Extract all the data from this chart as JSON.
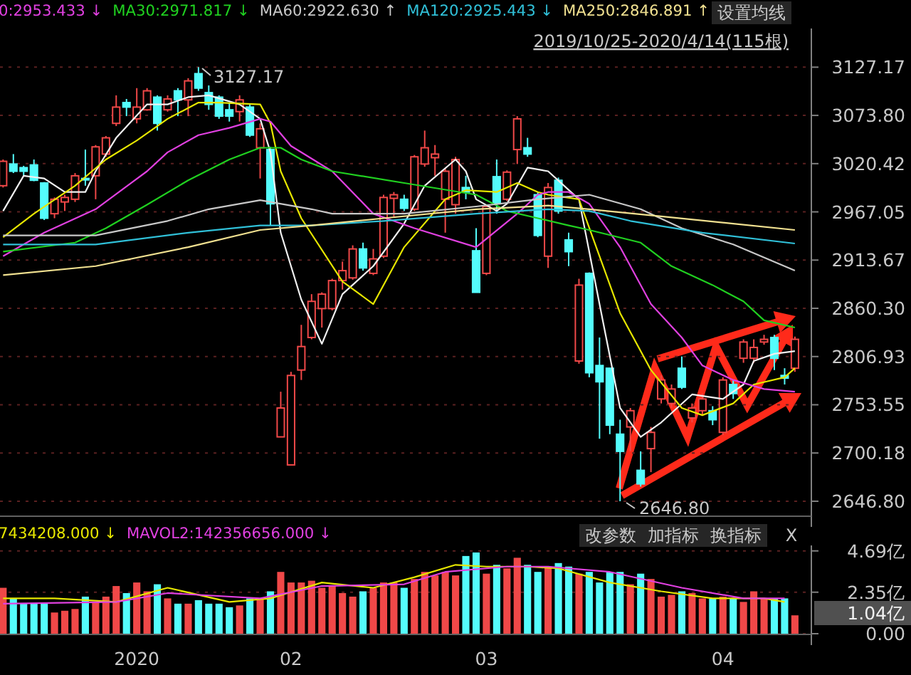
{
  "chart_data": [
    {
      "type": "candlestick",
      "legend": "top",
      "grid": "y",
      "tick_labels": "y",
      "ylim": [
        2631,
        3170
      ],
      "yticks": [
        3127.17,
        {
          "value": 3073.8,
          "label": "3073.80"
        },
        3020.42,
        2967.05,
        2913.67,
        {
          "value": 2860.3,
          "label": "2860.30"
        },
        2806.93,
        2753.55,
        2700.18,
        {
          "value": 2646.8,
          "label": "2646.80"
        }
      ],
      "categories": [
        null,
        null,
        null,
        null,
        null,
        null,
        null,
        null,
        null,
        null,
        null,
        null,
        null,
        "2020",
        null,
        null,
        null,
        null,
        null,
        null,
        null,
        null,
        null,
        null,
        null,
        null,
        null,
        null,
        "02",
        null,
        null,
        null,
        null,
        null,
        null,
        null,
        null,
        null,
        null,
        null,
        null,
        null,
        null,
        null,
        null,
        null,
        null,
        "03",
        null,
        null,
        null,
        null,
        null,
        null,
        null,
        null,
        null,
        null,
        null,
        null,
        null,
        null,
        null,
        null,
        null,
        null,
        null,
        null,
        null,
        null,
        "04",
        null,
        null,
        null,
        null,
        null,
        null,
        null
      ],
      "ohlc": [
        [
          2996,
          3025,
          2994,
          3023
        ],
        [
          3020,
          3031,
          3010,
          3012
        ],
        [
          3016,
          3018,
          3007,
          3012
        ],
        [
          3019,
          3025,
          3001,
          3002
        ],
        [
          2999,
          3000,
          2958,
          2960
        ],
        [
          2965,
          2983,
          2960,
          2981
        ],
        [
          2978,
          2986,
          2968,
          2983
        ],
        [
          2981,
          3010,
          2978,
          3007
        ],
        [
          3004,
          3036,
          2996,
          3003
        ],
        [
          3007,
          3041,
          2981,
          3039
        ],
        [
          3031,
          3051,
          3028,
          3049
        ],
        [
          3065,
          3096,
          3062,
          3083
        ],
        [
          3088,
          3092,
          3073,
          3083
        ],
        [
          3070,
          3104,
          3065,
          3083
        ],
        [
          3080,
          3104,
          3079,
          3101
        ],
        [
          3094,
          3096,
          3057,
          3065
        ],
        [
          3080,
          3096,
          3078,
          3092
        ],
        [
          3101,
          3104,
          3073,
          3091
        ],
        [
          3091,
          3115,
          3073,
          3112
        ],
        [
          3120,
          3127.17,
          3101,
          3104
        ],
        [
          3099,
          3107,
          3080,
          3086
        ],
        [
          3094,
          3096,
          3070,
          3073
        ],
        [
          3080,
          3088,
          3067,
          3073
        ],
        [
          3078,
          3096,
          3067,
          3091
        ],
        [
          3083,
          3086,
          3050,
          3052
        ],
        [
          3038,
          3065,
          3004,
          3059
        ],
        [
          3036,
          3039,
          2952,
          2976
        ],
        [
          2718,
          2768,
          2718,
          2750
        ],
        [
          2687,
          2790,
          2687,
          2786
        ],
        [
          2792,
          2842,
          2781,
          2818
        ],
        [
          2828,
          2876,
          2826,
          2868
        ],
        [
          2860,
          2878,
          2839,
          2876
        ],
        [
          2860,
          2893,
          2858,
          2891
        ],
        [
          2891,
          2912,
          2881,
          2902
        ],
        [
          2894,
          2930,
          2892,
          2926
        ],
        [
          2926,
          2933,
          2902,
          2905
        ],
        [
          2899,
          2926,
          2897,
          2915
        ],
        [
          2918,
          2986,
          2916,
          2983
        ],
        [
          2982,
          2989,
          2962,
          2986
        ],
        [
          2981,
          2986,
          2968,
          2971
        ],
        [
          2970,
          3030,
          2968,
          3028
        ],
        [
          3020,
          3057,
          3017,
          3038
        ],
        [
          3027,
          3041,
          3007,
          3031
        ],
        [
          2981,
          3015,
          2944,
          3012
        ],
        [
          2975,
          3028,
          2965,
          3025
        ],
        [
          2994,
          3007,
          2981,
          2989
        ],
        [
          2924,
          2949,
          2878,
          2878
        ],
        [
          2899,
          2975,
          2897,
          2973
        ],
        [
          3006,
          3025,
          2965,
          2976
        ],
        [
          2981,
          3013,
          2979,
          3011
        ],
        [
          3036,
          3073,
          3020,
          3070
        ],
        [
          3038,
          3049,
          3028,
          3031
        ],
        [
          2986,
          2989,
          2939,
          2941
        ],
        [
          2918,
          2999,
          2905,
          2994
        ],
        [
          3002,
          3005,
          2965,
          2968
        ],
        [
          2936,
          2944,
          2907,
          2923
        ],
        [
          2802,
          2893,
          2799,
          2886
        ],
        [
          2899,
          2900,
          2784,
          2789
        ],
        [
          2797,
          2828,
          2716,
          2779
        ],
        [
          2794,
          2794,
          2721,
          2731
        ],
        [
          2721,
          2737,
          2646.8,
          2702
        ],
        [
          2729,
          2750,
          2702,
          2747
        ],
        [
          2681,
          2702,
          2663,
          2666
        ],
        [
          2705,
          2729,
          2679,
          2723
        ],
        [
          2760,
          2786,
          2755,
          2781
        ],
        [
          2755,
          2776,
          2750,
          2771
        ],
        [
          2794,
          2807,
          2771,
          2773
        ],
        [
          2739,
          2755,
          2734,
          2750
        ],
        [
          2747,
          2766,
          2742,
          2760
        ],
        [
          2747,
          2752,
          2731,
          2737
        ],
        [
          2723,
          2784,
          2720,
          2781
        ],
        [
          2776,
          2781,
          2760,
          2766
        ],
        [
          2805,
          2826,
          2800,
          2823
        ],
        [
          2805,
          2826,
          2800,
          2817
        ],
        [
          2823,
          2831,
          2820,
          2826
        ],
        [
          2828,
          2831,
          2792,
          2805
        ],
        [
          2786,
          2794,
          2776,
          2783
        ],
        [
          2794,
          2829,
          2790,
          2826
        ]
      ],
      "colors": [
        "#f04848",
        "#54fcfc",
        "#54fcfc",
        "#54fcfc",
        "#54fcfc",
        "#f04848",
        "#f04848",
        "#f04848",
        "#54fcfc",
        "#f04848",
        "#f04848",
        "#f04848",
        "#54fcfc",
        "#f04848",
        "#f04848",
        "#54fcfc",
        "#f04848",
        "#54fcfc",
        "#f04848",
        "#54fcfc",
        "#54fcfc",
        "#54fcfc",
        "#54fcfc",
        "#f04848",
        "#54fcfc",
        "#f04848",
        "#54fcfc",
        "#f04848",
        "#f04848",
        "#f04848",
        "#f04848",
        "#f04848",
        "#f04848",
        "#f04848",
        "#f04848",
        "#54fcfc",
        "#f04848",
        "#f04848",
        "#f04848",
        "#54fcfc",
        "#f04848",
        "#f04848",
        "#f04848",
        "#f04848",
        "#f04848",
        "#54fcfc",
        "#54fcfc",
        "#f04848",
        "#54fcfc",
        "#f04848",
        "#f04848",
        "#54fcfc",
        "#54fcfc",
        "#f04848",
        "#54fcfc",
        "#54fcfc",
        "#f04848",
        "#54fcfc",
        "#54fcfc",
        "#54fcfc",
        "#54fcfc",
        "#f04848",
        "#54fcfc",
        "#f04848",
        "#f04848",
        "#f04848",
        "#54fcfc",
        "#f04848",
        "#f04848",
        "#54fcfc",
        "#f04848",
        "#54fcfc",
        "#f04848",
        "#f04848",
        "#f04848",
        "#54fcfc",
        "#54fcfc",
        "#f04848"
      ],
      "series": [
        {
          "type": "line",
          "color": "#f0f0f0",
          "values": [
            2968,
            null,
            3007,
            null,
            3004,
            null,
            2989,
            null,
            2989,
            3012,
            null,
            3049,
            null,
            null,
            3086,
            null,
            3086,
            null,
            3094,
            null,
            3096,
            null,
            null,
            3086,
            null,
            3070,
            3033,
            2944,
            null,
            2870,
            null,
            2821,
            null,
            2876,
            null,
            null,
            2907,
            null,
            null,
            2954,
            null,
            2996,
            null,
            null,
            3025,
            3012,
            2981,
            null,
            2968,
            2976,
            null,
            3016,
            null,
            3012,
            null,
            null,
            2981,
            null,
            2865,
            null,
            2750,
            null,
            2718,
            null,
            2734,
            null,
            null,
            2765,
            null,
            null,
            2760,
            null,
            2776,
            2802,
            null,
            2810,
            null,
            2813
          ]
        },
        {
          "type": "line",
          "color": "#e6e600",
          "values": [
            2939,
            null,
            null,
            2965,
            null,
            null,
            null,
            2996,
            null,
            null,
            3025,
            null,
            null,
            3046,
            null,
            null,
            3070,
            null,
            null,
            3088,
            null,
            3088,
            null,
            null,
            null,
            3086,
            3065,
            3012,
            null,
            2960,
            null,
            null,
            null,
            2890,
            null,
            null,
            2865,
            null,
            null,
            2928,
            null,
            null,
            null,
            2981,
            null,
            2991,
            null,
            null,
            2989,
            null,
            2999,
            null,
            2989,
            2986,
            null,
            null,
            2981,
            null,
            2918,
            null,
            2855,
            null,
            null,
            2792,
            null,
            null,
            2750,
            null,
            2742,
            null,
            null,
            2755,
            null,
            2776,
            null,
            null,
            2784,
            2794
          ]
        },
        {
          "type": "line",
          "name": "0:2953.433 ↓",
          "color": "#e040e0",
          "values": [
            2918,
            null,
            null,
            null,
            2944,
            null,
            null,
            null,
            null,
            2970,
            null,
            null,
            null,
            null,
            3012,
            null,
            3033,
            null,
            null,
            3052,
            null,
            null,
            3060,
            null,
            null,
            3070,
            3067,
            null,
            3040,
            null,
            null,
            null,
            3012,
            null,
            null,
            null,
            2965,
            null,
            null,
            null,
            2949,
            null,
            null,
            null,
            null,
            null,
            2928,
            null,
            null,
            null,
            2965,
            null,
            2986,
            2989,
            null,
            2989,
            null,
            2976,
            null,
            null,
            2928,
            null,
            null,
            2865,
            null,
            null,
            2828,
            null,
            2797,
            null,
            null,
            2781,
            null,
            null,
            2771,
            null,
            null,
            2768
          ]
        },
        {
          "type": "line",
          "name": "MA30:2971.817 ↓",
          "color": "#20d020",
          "values": [
            2923,
            null,
            null,
            null,
            null,
            null,
            null,
            2933,
            null,
            null,
            2949,
            null,
            null,
            null,
            2975,
            null,
            null,
            null,
            3002,
            null,
            null,
            null,
            3025,
            null,
            null,
            3038,
            null,
            3038,
            null,
            3025,
            null,
            null,
            3012,
            null,
            null,
            null,
            null,
            null,
            null,
            2999,
            null,
            null,
            null,
            null,
            null,
            null,
            2986,
            null,
            null,
            2968,
            null,
            null,
            2960,
            null,
            null,
            2952,
            null,
            2947,
            null,
            null,
            null,
            null,
            2933,
            null,
            null,
            2907,
            null,
            null,
            null,
            2886,
            null,
            null,
            2868,
            null,
            2847,
            null,
            null,
            2839
          ]
        },
        {
          "type": "line",
          "name": "MA60:2922.630 ↑",
          "color": "#c8c8c8",
          "values": [
            2941,
            null,
            null,
            null,
            null,
            null,
            null,
            null,
            null,
            2941,
            null,
            null,
            null,
            null,
            null,
            null,
            2957,
            null,
            null,
            null,
            2970,
            null,
            null,
            null,
            null,
            2980,
            null,
            null,
            null,
            null,
            2970,
            null,
            2965,
            null,
            null,
            null,
            null,
            null,
            null,
            2965,
            null,
            null,
            null,
            null,
            null,
            null,
            2973,
            null,
            null,
            null,
            null,
            null,
            2981,
            null,
            null,
            null,
            null,
            2986,
            null,
            null,
            null,
            null,
            2970,
            null,
            null,
            null,
            2949,
            null,
            null,
            null,
            null,
            2931,
            null,
            null,
            null,
            null,
            null,
            2902
          ]
        },
        {
          "type": "line",
          "name": "MA120:2925.443 ↓",
          "color": "#30c0d8",
          "values": [
            2931,
            null,
            null,
            null,
            null,
            null,
            null,
            null,
            null,
            2931,
            null,
            null,
            null,
            null,
            null,
            null,
            null,
            null,
            2944,
            null,
            null,
            null,
            null,
            null,
            null,
            2952,
            null,
            null,
            null,
            null,
            2952,
            null,
            null,
            null,
            null,
            null,
            null,
            2957,
            null,
            null,
            null,
            null,
            null,
            null,
            null,
            null,
            2965,
            null,
            null,
            null,
            null,
            null,
            null,
            2970,
            null,
            null,
            null,
            2968,
            null,
            null,
            null,
            2957,
            null,
            null,
            null,
            null,
            null,
            null,
            2944,
            null,
            null,
            null,
            null,
            null,
            null,
            null,
            null,
            2932
          ]
        },
        {
          "type": "line",
          "name": "MA250:2846.891 ↑",
          "color": "#f0e090",
          "values": [
            2897,
            null,
            null,
            null,
            null,
            null,
            null,
            null,
            null,
            2907,
            null,
            null,
            null,
            null,
            null,
            null,
            null,
            null,
            2928,
            null,
            null,
            null,
            null,
            null,
            null,
            2947,
            null,
            null,
            null,
            null,
            2952,
            null,
            null,
            null,
            null,
            null,
            null,
            2960,
            null,
            null,
            null,
            null,
            null,
            null,
            null,
            null,
            2970,
            null,
            null,
            null,
            null,
            null,
            null,
            2974,
            null,
            null,
            null,
            2970,
            null,
            null,
            null,
            null,
            null,
            null,
            2962,
            null,
            null,
            null,
            null,
            null,
            null,
            2954,
            null,
            null,
            null,
            null,
            null,
            2947
          ]
        }
      ],
      "annotations": [
        "3127.17",
        "2646.80",
        "2019/10/25-2020/4/14(115根)",
        "设置均线"
      ]
    },
    {
      "type": "bar",
      "legend": "top",
      "grid": "y",
      "ylim": [
        0,
        5
      ],
      "yticks": [
        {
          "value": 0,
          "label": "0.00"
        },
        {
          "value": 2.35,
          "label": "2.35亿"
        },
        {
          "value": 4.69,
          "label": "4.69亿"
        }
      ],
      "categories": [
        null,
        null,
        null,
        null,
        null,
        null,
        null,
        null,
        null,
        null,
        null,
        null,
        null,
        "2020",
        null,
        null,
        null,
        null,
        null,
        null,
        null,
        null,
        null,
        null,
        null,
        null,
        null,
        null,
        "02",
        null,
        null,
        null,
        null,
        null,
        null,
        null,
        null,
        null,
        null,
        null,
        null,
        null,
        null,
        null,
        null,
        null,
        null,
        "03",
        null,
        null,
        null,
        null,
        null,
        null,
        null,
        null,
        null,
        null,
        null,
        null,
        null,
        null,
        null,
        null,
        null,
        null,
        null,
        null,
        null,
        null,
        "04",
        null,
        null,
        null,
        null,
        null,
        null,
        null
      ],
      "values": [
        2.6,
        2.0,
        1.7,
        1.7,
        1.7,
        1.2,
        1.3,
        1.4,
        2.1,
        1.8,
        2.1,
        2.7,
        2.3,
        2.9,
        2.4,
        2.8,
        2.0,
        1.7,
        1.7,
        1.9,
        1.7,
        1.7,
        1.5,
        1.6,
        2.0,
        2.0,
        2.4,
        3.5,
        2.9,
        2.9,
        3.0,
        2.6,
        2.7,
        2.3,
        2.1,
        2.4,
        2.6,
        2.9,
        2.9,
        2.6,
        3.1,
        3.5,
        3.3,
        3.5,
        3.3,
        4.4,
        4.6,
        3.4,
        3.9,
        3.7,
        4.3,
        3.9,
        3.5,
        3.8,
        4.0,
        3.8,
        3.4,
        3.5,
        2.9,
        3.5,
        3.5,
        2.8,
        3.4,
        3.1,
        2.1,
        2.2,
        2.4,
        2.3,
        2.0,
        2.0,
        2.1,
        2.0,
        1.8,
        2.4,
        2.0,
        2.0,
        2.0,
        1.04
      ],
      "colors": [
        "#f04848",
        "#54fcfc",
        "#54fcfc",
        "#54fcfc",
        "#54fcfc",
        "#f04848",
        "#f04848",
        "#f04848",
        "#54fcfc",
        "#f04848",
        "#f04848",
        "#f04848",
        "#54fcfc",
        "#f04848",
        "#f04848",
        "#54fcfc",
        "#f04848",
        "#54fcfc",
        "#f04848",
        "#54fcfc",
        "#54fcfc",
        "#54fcfc",
        "#54fcfc",
        "#f04848",
        "#54fcfc",
        "#f04848",
        "#54fcfc",
        "#f04848",
        "#f04848",
        "#f04848",
        "#f04848",
        "#f04848",
        "#f04848",
        "#f04848",
        "#f04848",
        "#54fcfc",
        "#f04848",
        "#f04848",
        "#f04848",
        "#54fcfc",
        "#f04848",
        "#f04848",
        "#f04848",
        "#f04848",
        "#f04848",
        "#54fcfc",
        "#54fcfc",
        "#f04848",
        "#54fcfc",
        "#f04848",
        "#f04848",
        "#54fcfc",
        "#54fcfc",
        "#f04848",
        "#54fcfc",
        "#54fcfc",
        "#f04848",
        "#54fcfc",
        "#54fcfc",
        "#54fcfc",
        "#54fcfc",
        "#f04848",
        "#54fcfc",
        "#f04848",
        "#f04848",
        "#f04848",
        "#54fcfc",
        "#f04848",
        "#f04848",
        "#54fcfc",
        "#f04848",
        "#54fcfc",
        "#f04848",
        "#f04848",
        "#f04848",
        "#54fcfc",
        "#54fcfc",
        "#f04848"
      ],
      "series": [
        {
          "type": "line",
          "name": "7434208.000 ↓",
          "color": "#e6e600",
          "values": [
            2.0,
            null,
            null,
            null,
            null,
            2.0,
            null,
            null,
            null,
            null,
            null,
            1.8,
            null,
            null,
            null,
            null,
            2.6,
            null,
            null,
            null,
            null,
            null,
            1.8,
            null,
            null,
            null,
            2.0,
            null,
            null,
            null,
            null,
            2.9,
            null,
            null,
            null,
            null,
            2.6,
            null,
            null,
            null,
            3.2,
            null,
            null,
            null,
            3.9,
            null,
            null,
            3.8,
            null,
            null,
            null,
            3.8,
            null,
            null,
            3.7,
            null,
            null,
            null,
            null,
            2.9,
            null,
            null,
            null,
            null,
            2.4,
            null,
            null,
            null,
            null,
            2.0,
            null,
            null,
            null,
            null,
            2.0,
            null,
            1.8,
            null
          ]
        },
        {
          "type": "line",
          "name": "MAVOL2:142356656.000 ↓",
          "color": "#e040e0",
          "values": [
            1.7,
            null,
            null,
            null,
            null,
            null,
            null,
            null,
            null,
            null,
            null,
            1.8,
            null,
            null,
            null,
            null,
            2.3,
            null,
            null,
            null,
            null,
            null,
            null,
            null,
            null,
            2.0,
            null,
            null,
            null,
            null,
            null,
            2.7,
            null,
            null,
            null,
            null,
            null,
            null,
            null,
            2.8,
            null,
            null,
            null,
            3.5,
            null,
            null,
            null,
            null,
            null,
            3.8,
            null,
            null,
            null,
            3.8,
            null,
            null,
            null,
            null,
            null,
            3.5,
            null,
            null,
            null,
            null,
            null,
            null,
            2.6,
            null,
            null,
            null,
            null,
            null,
            2.0,
            null,
            null,
            null,
            2.0,
            null
          ]
        }
      ],
      "annotations": [
        "改参数",
        "加指标",
        "换指标",
        "X",
        "1.04亿"
      ]
    }
  ]
}
